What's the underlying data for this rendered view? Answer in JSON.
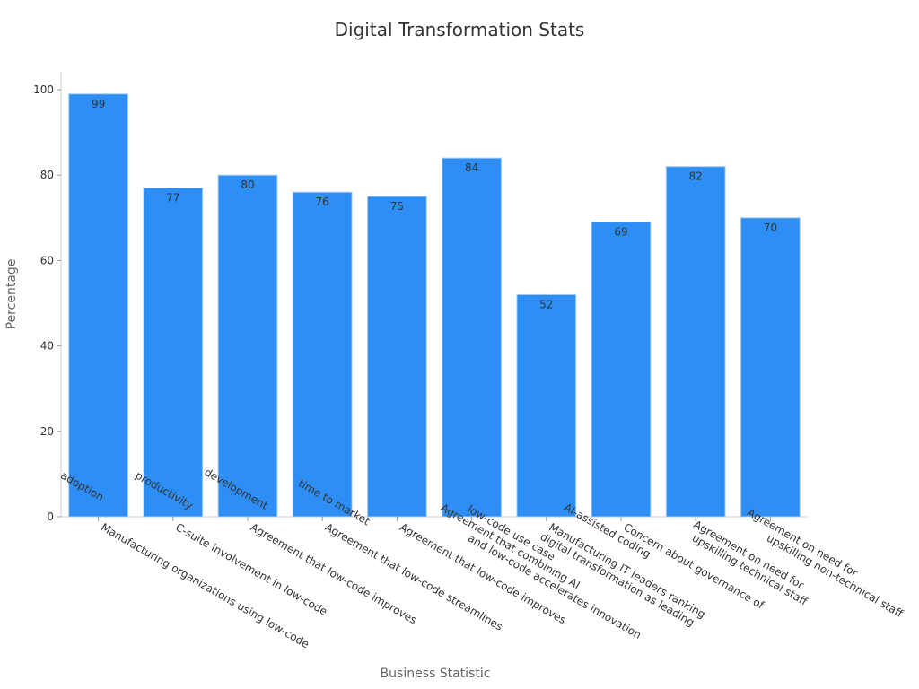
{
  "chart_data": {
    "type": "bar",
    "title": "Digital Transformation Stats",
    "xlabel": "Business Statistic",
    "ylabel": "Percentage",
    "ylim": [
      0,
      104
    ],
    "yticks": [
      0,
      20,
      40,
      60,
      80,
      100
    ],
    "grid": false,
    "categories": [
      [
        "Manufacturing organizations using low-code"
      ],
      [
        "C-suite involvement in low-code",
        "adoption"
      ],
      [
        "Agreement that low-code improves",
        "productivity"
      ],
      [
        "Agreement that low-code streamlines",
        "development"
      ],
      [
        "Agreement that low-code improves",
        "time to market"
      ],
      [
        "Agreement that combining AI",
        "and low-code accelerates innovation"
      ],
      [
        "Manufacturing IT leaders ranking",
        "digital transformation as leading",
        "low-code use case"
      ],
      [
        "Concern about governance of",
        "AI-assisted coding"
      ],
      [
        "Agreement on need for",
        "upskilling technical staff"
      ],
      [
        "Agreement on need for",
        "upskilling non-technical staff"
      ]
    ],
    "values": [
      99,
      77,
      80,
      76,
      75,
      84,
      52,
      69,
      82,
      70
    ],
    "colors": {
      "bar": "#2d8ff5",
      "bar_edge": "#a7cdf7"
    }
  }
}
